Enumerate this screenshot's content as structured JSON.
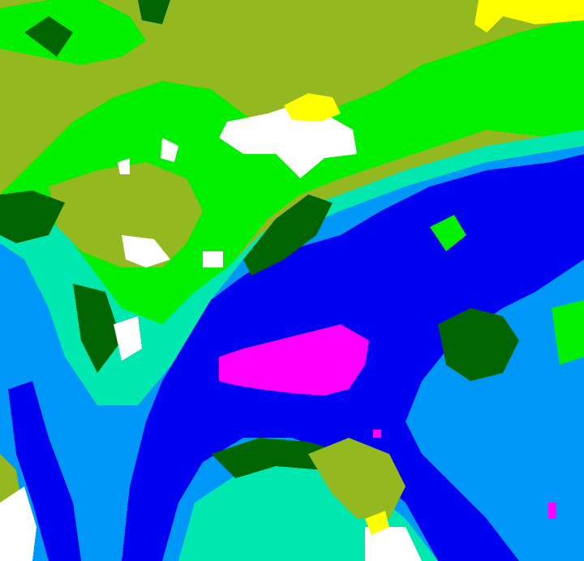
{
  "image": {
    "kind": "false-color classified satellite imagery",
    "palette": {
      "olive": "#93b820",
      "bright_green": "#00f000",
      "dark_green": "#006400",
      "cyan": "#00e8b0",
      "light_blue": "#0098f8",
      "blue": "#0000f0",
      "magenta": "#ff00ff",
      "white": "#ffffff",
      "yellow": "#ffff00"
    }
  }
}
